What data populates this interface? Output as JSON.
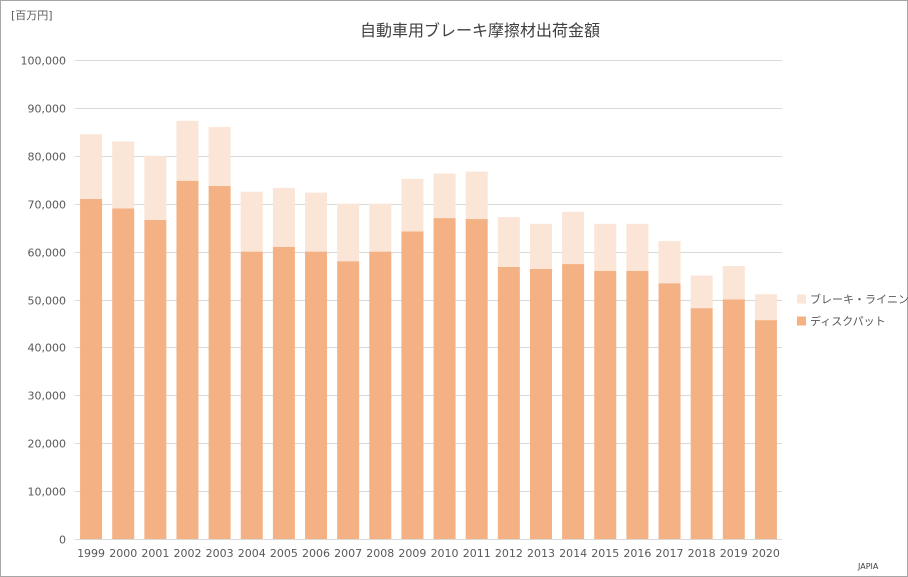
{
  "unit_label": "[百万円]",
  "source": "JAPIA",
  "chart_data": {
    "type": "bar",
    "stacked": true,
    "title": "自動車用ブレーキ摩擦材出荷金額",
    "xlabel": "",
    "ylabel": "",
    "ylim": [
      0,
      100000
    ],
    "ytick_labels": [
      "0",
      "10,000",
      "20,000",
      "30,000",
      "40,000",
      "50,000",
      "60,000",
      "70,000",
      "80,000",
      "90,000",
      "100,000"
    ],
    "grid": true,
    "legend_position": "right",
    "categories": [
      "1999",
      "2000",
      "2001",
      "2002",
      "2003",
      "2004",
      "2005",
      "2006",
      "2007",
      "2008",
      "2009",
      "2010",
      "2011",
      "2012",
      "2013",
      "2014",
      "2015",
      "2016",
      "2017",
      "2018",
      "2019",
      "2020"
    ],
    "series": [
      {
        "name": "ディスクパット",
        "color": "#F4B183",
        "values": [
          71000,
          69000,
          66600,
          74800,
          73700,
          60000,
          61000,
          60000,
          58000,
          60000,
          64200,
          67000,
          66800,
          56800,
          56400,
          57400,
          56000,
          56000,
          53400,
          48200,
          50000,
          45700
        ]
      },
      {
        "name": "ブレーキ・ライニング",
        "color": "#FBE5D6",
        "values": [
          13500,
          14000,
          13400,
          12500,
          12300,
          12500,
          12300,
          12300,
          12000,
          10000,
          11000,
          9300,
          9900,
          10400,
          9400,
          10900,
          9800,
          9800,
          8800,
          6800,
          7000,
          5400
        ]
      }
    ]
  }
}
